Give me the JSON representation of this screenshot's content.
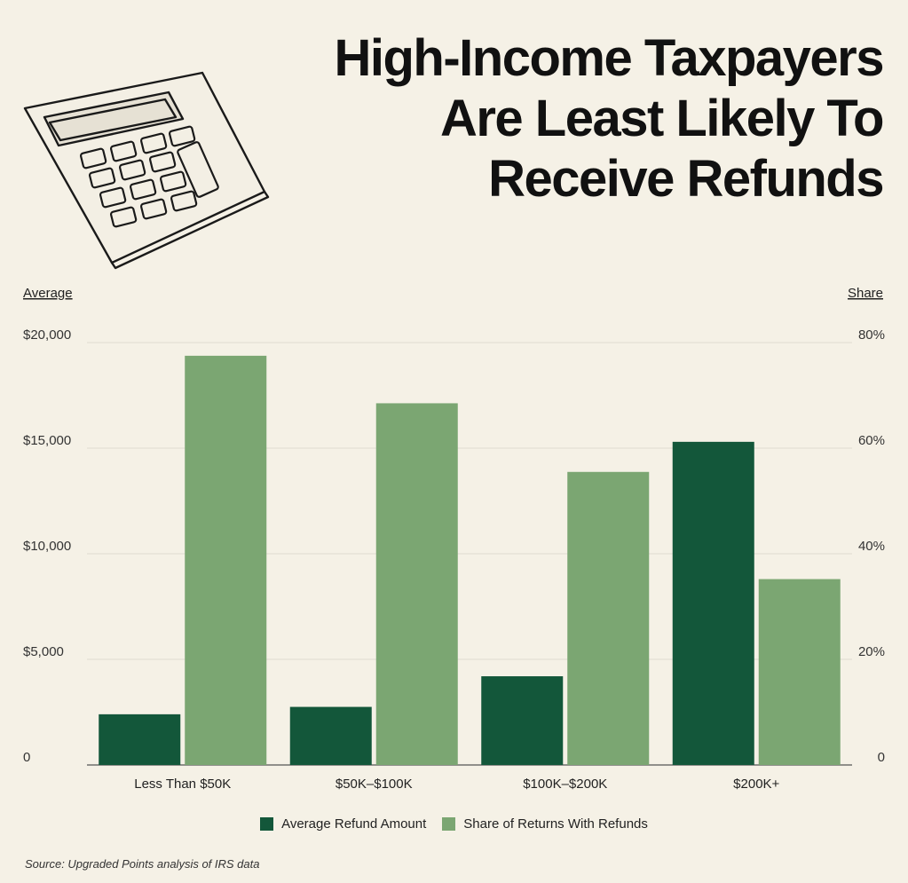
{
  "title_lines": [
    "High-Income Taxpayers",
    "Are Least Likely To",
    "Receive Refunds"
  ],
  "icons": {
    "illustration": "calculator-icon"
  },
  "colors": {
    "background": "#f5f1e6",
    "dark_green": "#13573a",
    "light_green": "#7ba672",
    "grid": "#dedad0"
  },
  "chart_data": {
    "type": "bar",
    "categories": [
      "Less Than $50K",
      "$50K–$100K",
      "$100K–$200K",
      "$200K+"
    ],
    "series": [
      {
        "name": "Average Refund Amount",
        "axis": "left",
        "color": "#13573a",
        "values": [
          2400,
          2750,
          4200,
          15300
        ]
      },
      {
        "name": "Share of Returns With Refunds",
        "axis": "right",
        "color": "#7ba672",
        "values": [
          77.5,
          68.5,
          55.5,
          35.2
        ]
      }
    ],
    "left_axis": {
      "label": "Average",
      "ticks": [
        0,
        5000,
        10000,
        15000,
        20000
      ],
      "tick_labels": [
        "0",
        "$5,000",
        "$10,000",
        "$15,000",
        "$20,000"
      ],
      "ylim": [
        0,
        20000
      ]
    },
    "right_axis": {
      "label": "Share",
      "ticks": [
        0,
        20,
        40,
        60,
        80
      ],
      "tick_labels": [
        "0",
        "20%",
        "40%",
        "60%",
        "80%"
      ],
      "ylim": [
        0,
        80
      ]
    },
    "grid": true,
    "legend_position": "bottom-center"
  },
  "legend": {
    "items": [
      "Average Refund Amount",
      "Share of Returns With Refunds"
    ]
  },
  "source": "Source: Upgraded Points analysis of IRS data"
}
